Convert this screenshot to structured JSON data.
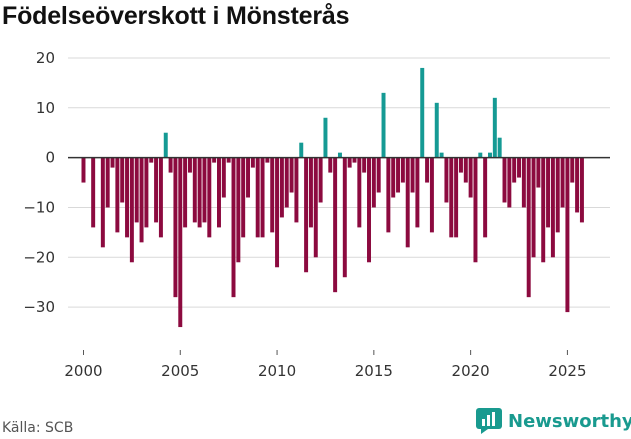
{
  "title": "Födelseöverskott i Mönsterås",
  "source": "Källa: SCB",
  "brand": {
    "name": "Newsworthy",
    "icon": "newsworthy-logo-icon",
    "color": "#199a8f"
  },
  "colors": {
    "positive": "#159a94",
    "negative": "#8c0a3f",
    "zero_line": "#333333",
    "grid": "#d9d9d9"
  },
  "chart_data": {
    "type": "bar",
    "title": "Födelseöverskott i Mönsterås",
    "xlabel": "",
    "ylabel": "",
    "xlim": [
      1999.2,
      2027.2
    ],
    "ylim": [
      -38,
      22
    ],
    "yticks": [
      20,
      10,
      0,
      -10,
      -20,
      -30
    ],
    "ytick_labels": [
      "20",
      "10",
      "0",
      "−10",
      "−20",
      "−30"
    ],
    "xticks": [
      2000,
      2005,
      2010,
      2015,
      2020,
      2025
    ],
    "xtick_labels": [
      "2000",
      "2005",
      "2010",
      "2015",
      "2020",
      "2025"
    ],
    "grid": true,
    "start": 2000.0,
    "step": 0.25,
    "values": [
      -5,
      0,
      -14,
      0,
      -18,
      -10,
      -2,
      -15,
      -9,
      -16,
      -21,
      -13,
      -17,
      -14,
      -1,
      -13,
      -16,
      5,
      -3,
      -28,
      -34,
      -14,
      -3,
      -13,
      -14,
      -13,
      -16,
      -1,
      -14,
      -8,
      -1,
      -28,
      -21,
      -16,
      -8,
      -2,
      -16,
      -16,
      -1,
      -15,
      -22,
      -12,
      -10,
      -7,
      -13,
      3,
      -23,
      -14,
      -20,
      -9,
      8,
      -3,
      -27,
      1,
      -24,
      -2,
      -1,
      -14,
      -3,
      -21,
      -10,
      -7,
      13,
      -15,
      -8,
      -7,
      -5,
      -18,
      -7,
      -14,
      18,
      -5,
      -15,
      11,
      1,
      -9,
      -16,
      -16,
      -3,
      -5,
      -8,
      -21,
      1,
      -16,
      1,
      12,
      4,
      -9,
      -10,
      -5,
      -4,
      -10,
      -28,
      -20,
      -6,
      -21,
      -14,
      -20,
      -15,
      -10,
      -31,
      -5,
      -11,
      -13
    ]
  }
}
